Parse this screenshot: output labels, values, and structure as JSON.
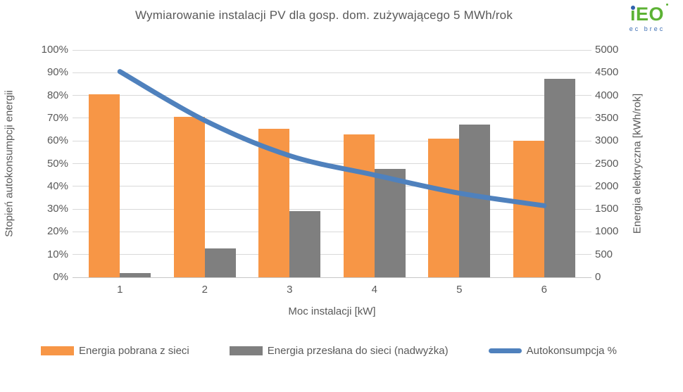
{
  "title": "Wymiarowanie instalacji PV dla gosp. dom. zużywającego 5 MWh/rok",
  "logo": {
    "text": "iEO",
    "i_stem": "ı",
    "eo": "EO",
    "subtext": "ec brec"
  },
  "colors": {
    "orange": "#F79646",
    "gray": "#7F7F7F",
    "blue": "#4F81BD",
    "text": "#595959",
    "gridline": "#D9D9D9",
    "logo_green": "#5CB234",
    "logo_blue": "#2E62AD"
  },
  "chart_data": {
    "type": "bar",
    "subtype": "grouped bars with overlaid smooth line",
    "title": "Wymiarowanie instalacji PV dla gosp. dom. zużywającego 5 MWh/rok",
    "categories": [
      "1",
      "2",
      "3",
      "4",
      "5",
      "6"
    ],
    "series": [
      {
        "name": "Energia pobrana z sieci",
        "type": "bar",
        "axis": "right",
        "color": "#F79646",
        "values": [
          4030,
          3530,
          3270,
          3150,
          3050,
          3000
        ]
      },
      {
        "name": "Energia przesłana do sieci (nadwyżka)",
        "type": "bar",
        "axis": "right",
        "color": "#7F7F7F",
        "values": [
          100,
          630,
          1450,
          2390,
          3360,
          4370
        ]
      },
      {
        "name": "Autokonsumpcja %",
        "type": "line",
        "axis": "left",
        "color": "#4F81BD",
        "values": [
          90.5,
          69,
          53.5,
          45,
          37,
          31.5
        ]
      }
    ],
    "left_axis": {
      "title": "Stopień autokonsumpcji energii",
      "min": 0,
      "max": 100,
      "unit": "%",
      "ticks": [
        "0%",
        "10%",
        "20%",
        "30%",
        "40%",
        "50%",
        "60%",
        "70%",
        "80%",
        "90%",
        "100%"
      ]
    },
    "right_axis": {
      "title": "Energia elektryczna [kWh/rok]",
      "min": 0,
      "max": 5000,
      "ticks": [
        "0",
        "500",
        "1000",
        "1500",
        "2000",
        "2500",
        "3000",
        "3500",
        "4000",
        "4500",
        "5000"
      ]
    },
    "x_axis": {
      "title": "Moc instalacji [kW]"
    },
    "grid": true,
    "legend_position": "bottom"
  }
}
